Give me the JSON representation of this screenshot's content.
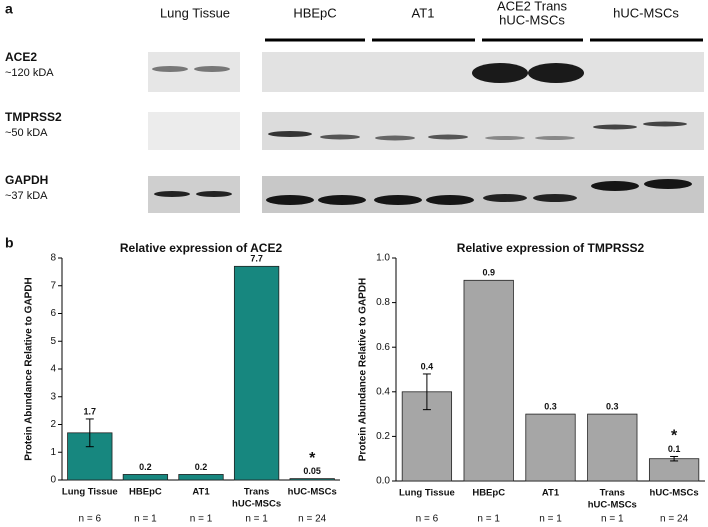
{
  "panel_a": {
    "label": "a",
    "columns": [
      "Lung Tissue",
      "HBEpC",
      "AT1",
      [
        "ACE2 Trans",
        "hUC-MSCs"
      ],
      "hUC-MSCs"
    ],
    "rows": [
      {
        "name": "ACE2",
        "size": "~120 kDA"
      },
      {
        "name": "TMPRSS2",
        "size": "~50 kDA"
      },
      {
        "name": "GAPDH",
        "size": "~37 kDA"
      }
    ]
  },
  "panel_b_label": "b",
  "chart_data": [
    {
      "type": "bar",
      "title": "Relative expression of ACE2",
      "y_label": "Protein Abundance Relative to GAPDH",
      "categories": [
        "Lung Tissue",
        "HBEpC",
        "AT1",
        [
          "Trans",
          "hUC-MSCs"
        ],
        "hUC-MSCs"
      ],
      "values": [
        1.7,
        0.2,
        0.2,
        7.7,
        0.05
      ],
      "errors": [
        0.5,
        null,
        null,
        null,
        null
      ],
      "significance": [
        null,
        null,
        null,
        null,
        "*"
      ],
      "n_labels": [
        "n = 6",
        "n = 1",
        "n = 1",
        "n = 1",
        "n = 24"
      ],
      "color": "#17877f",
      "ylim": [
        0,
        8
      ],
      "yticks": [
        0,
        1,
        2,
        3,
        4,
        5,
        6,
        7,
        8
      ]
    },
    {
      "type": "bar",
      "title": "Relative expression of TMPRSS2",
      "y_label": "Protein Abundance Relative to GAPDH",
      "categories": [
        "Lung Tissue",
        "HBEpC",
        "AT1",
        [
          "Trans",
          "hUC-MSCs"
        ],
        "hUC-MSCs"
      ],
      "values": [
        0.4,
        0.9,
        0.3,
        0.3,
        0.1
      ],
      "errors": [
        0.08,
        null,
        null,
        null,
        0.01
      ],
      "significance": [
        null,
        null,
        null,
        null,
        "*"
      ],
      "n_labels": [
        "n = 6",
        "n = 1",
        "n = 1",
        "n = 1",
        "n = 24"
      ],
      "color": "#a6a6a6",
      "ylim": [
        0,
        1
      ],
      "yticks": [
        {
          "value": 0,
          "label": "0.0"
        },
        0.2,
        0.4,
        0.6,
        0.8,
        {
          "value": 1,
          "label": "1.0"
        }
      ]
    }
  ]
}
